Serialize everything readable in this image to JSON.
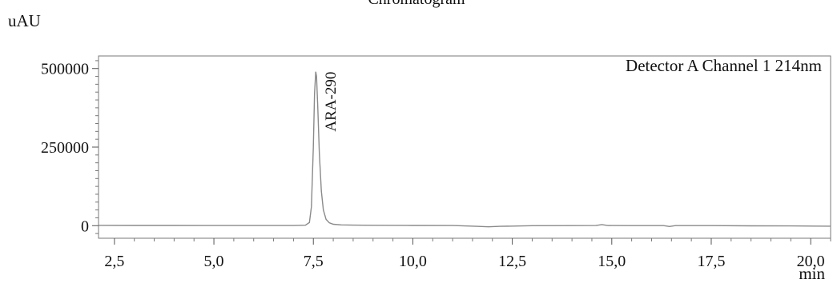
{
  "chart_data": {
    "type": "line",
    "title": "Chromatogram",
    "ylabel": "uAU",
    "xlabel": "min",
    "annotation": "Detector A Channel 1 214nm",
    "xlim": [
      2.1,
      20.5
    ],
    "ylim": [
      -40000,
      540000
    ],
    "x_ticks": [
      "2,5",
      "5,0",
      "7,5",
      "10,0",
      "12,5",
      "15,0",
      "17,5",
      "20,0"
    ],
    "x_tick_values": [
      2.5,
      5.0,
      7.5,
      10.0,
      12.5,
      15.0,
      17.5,
      20.0
    ],
    "y_ticks": [
      "0",
      "250000",
      "500000"
    ],
    "y_tick_values": [
      0,
      250000,
      500000
    ],
    "grid": false,
    "series": [
      {
        "x": [
          2.1,
          3.0,
          4.0,
          5.0,
          6.0,
          7.0,
          7.3,
          7.4,
          7.45,
          7.5,
          7.53,
          7.56,
          7.58,
          7.61,
          7.65,
          7.7,
          7.75,
          7.82,
          7.9,
          8.0,
          8.2,
          8.5,
          9.0,
          10.0,
          11.0,
          11.6,
          11.9,
          12.2,
          13.0,
          14.0,
          14.6,
          14.75,
          14.9,
          15.5,
          16.3,
          16.45,
          16.6,
          17.5,
          18.5,
          19.5,
          20.5
        ],
        "y": [
          1000,
          800,
          600,
          500,
          400,
          500,
          1500,
          10000,
          60000,
          250000,
          420000,
          490000,
          475000,
          380000,
          230000,
          110000,
          50000,
          20000,
          9000,
          4500,
          2500,
          1800,
          1200,
          800,
          500,
          -2000,
          -3500,
          -2000,
          0,
          300,
          500,
          3500,
          500,
          300,
          200,
          -2500,
          200,
          200,
          -500,
          -800,
          -1500
        ],
        "color": "#8a8a8a"
      }
    ],
    "peaks": [
      {
        "label": "ARA-290",
        "x": 7.56,
        "y": 490000
      }
    ]
  }
}
